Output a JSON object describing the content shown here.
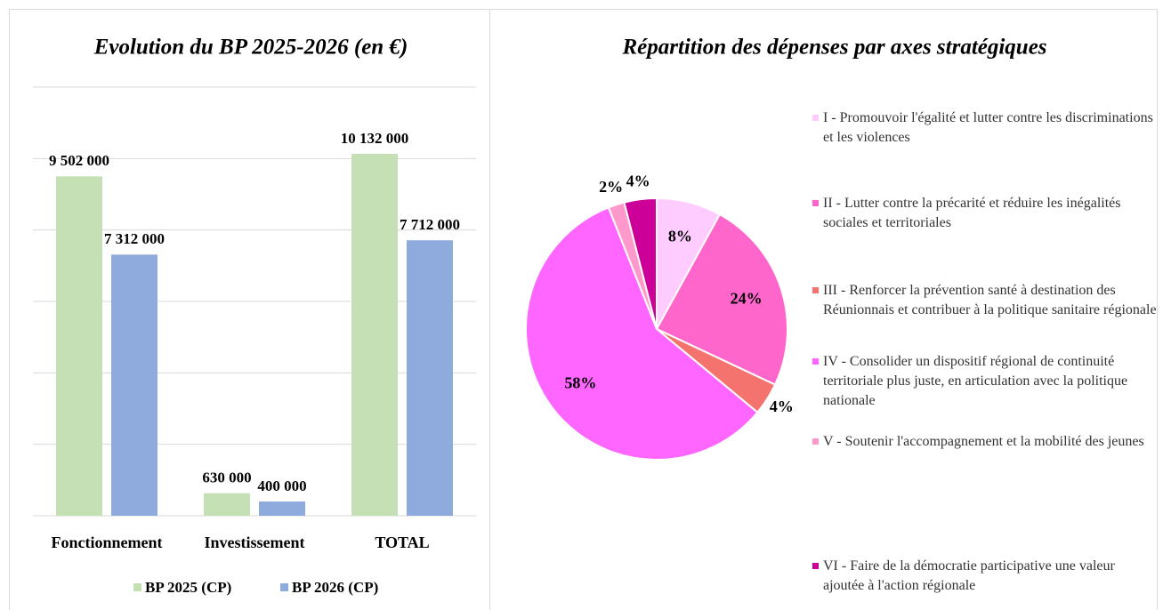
{
  "chart_data": [
    {
      "type": "bar",
      "title": "Evolution du BP 2025-2026 (en €)",
      "categories": [
        "Fonctionnement",
        "Investissement",
        "TOTAL"
      ],
      "series": [
        {
          "name": "BP 2025 (CP)",
          "color": "#c5e0b4",
          "values": [
            9502000,
            630000,
            10132000
          ],
          "value_labels": [
            "9 502 000",
            "630 000",
            "10 132 000"
          ]
        },
        {
          "name": "BP 2026 (CP)",
          "color": "#8faadc",
          "values": [
            7312000,
            400000,
            7712000
          ],
          "value_labels": [
            "7 312 000",
            "400 000",
            "7 712 000"
          ]
        }
      ],
      "ylim": [
        0,
        12000000
      ],
      "yticks": [
        0,
        2000000,
        4000000,
        6000000,
        8000000,
        10000000,
        12000000
      ],
      "grid": true,
      "legend": "bottom"
    },
    {
      "type": "pie",
      "title": "Répartition des dépenses par axes stratégiques",
      "categories": [
        "I - Promouvoir l'égalité et lutter contre les discriminations et les violences",
        "II - Lutter contre la précarité et réduire les inégalités sociales et territoriales",
        "III - Renforcer la prévention santé à destination des Réunionnais et contribuer à la politique sanitaire régionale",
        "IV - Consolider un dispositif régional de continuité territoriale plus juste, en articulation avec la politique nationale",
        "V - Soutenir l'accompagnement et la mobilité des jeunes",
        "VI - Faire de la démocratie participative une valeur ajoutée à l'action régionale"
      ],
      "values": [
        8,
        24,
        4,
        58,
        2,
        4
      ],
      "value_labels": [
        "8%",
        "24%",
        "4%",
        "58%",
        "2%",
        "4%"
      ],
      "colors": [
        "#ffccff",
        "#ff66cc",
        "#f4736e",
        "#ff66ff",
        "#ff99cc",
        "#cc0099"
      ],
      "legend": "right"
    }
  ]
}
